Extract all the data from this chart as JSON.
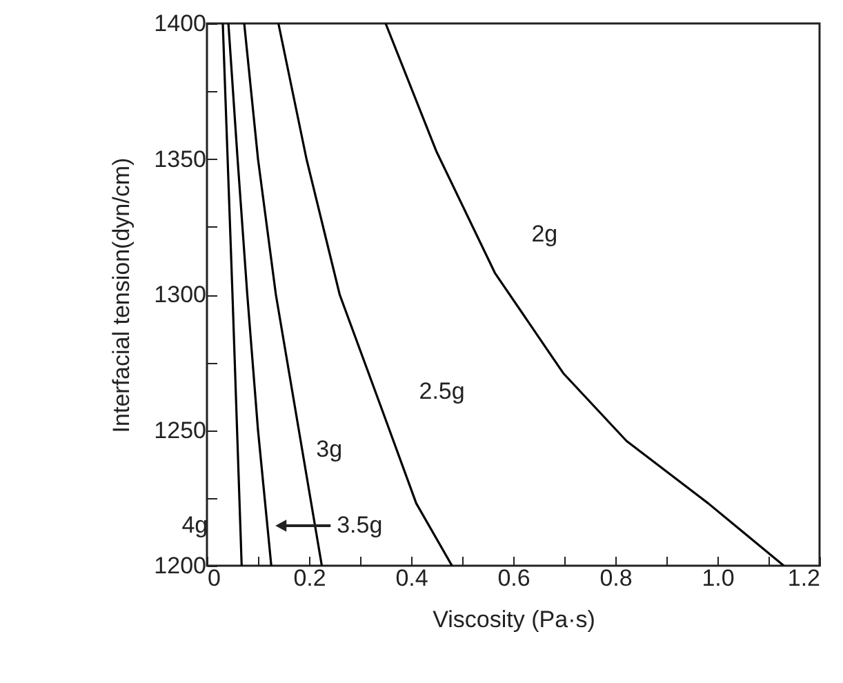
{
  "chart_data": {
    "type": "line",
    "xlabel": "Viscosity (Pa·s)",
    "ylabel": "Interfacial tension(dyn/cm)",
    "xlim": [
      0,
      1.2
    ],
    "ylim": [
      1200,
      1400
    ],
    "xticks": [
      0,
      {
        "value": 0.1,
        "label": null
      },
      0.2,
      {
        "value": 0.3,
        "label": null
      },
      0.4,
      {
        "value": 0.5,
        "label": null
      },
      0.6,
      {
        "value": 0.7,
        "label": null
      },
      0.8,
      {
        "value": 0.9,
        "label": null
      },
      {
        "value": 1,
        "label": "1.0"
      },
      {
        "value": 1.1,
        "label": null
      },
      1.2
    ],
    "yticks": [
      1200,
      {
        "value": 1225,
        "label": null
      },
      1250,
      {
        "value": 1275,
        "label": null
      },
      1300,
      {
        "value": 1325,
        "label": null
      },
      1350,
      {
        "value": 1375,
        "label": null
      },
      1400
    ],
    "grid": false,
    "marker": "none",
    "line_style": "solid",
    "series": [
      {
        "name": "2g",
        "color": "#000000",
        "x": [
          0.35,
          0.449,
          0.564,
          0.698,
          0.822,
          0.982,
          1.13
        ],
        "values": [
          1400,
          1353,
          1308,
          1271,
          1246,
          1223,
          1200
        ]
      },
      {
        "name": "2.5g",
        "color": "#000000",
        "x": [
          0.14,
          0.195,
          0.26,
          0.344,
          0.41,
          0.48
        ],
        "values": [
          1400,
          1350,
          1300,
          1257,
          1223,
          1200
        ]
      },
      {
        "name": "3g",
        "color": "#000000",
        "x": [
          0.073,
          0.1,
          0.135,
          0.18,
          0.225
        ],
        "values": [
          1400,
          1350,
          1300,
          1250,
          1200
        ]
      },
      {
        "color": "#000000",
        "x": [
          0.042,
          0.06,
          0.079,
          0.1,
          0.126
        ],
        "values": [
          1400,
          1350,
          1300,
          1250,
          1200
        ]
      },
      {
        "name": "4g",
        "color": "#000000",
        "x": [
          0.031,
          0.05,
          0.068
        ],
        "values": [
          1400,
          1300,
          1200
        ]
      }
    ],
    "annotations": [
      "3.5g"
    ]
  }
}
